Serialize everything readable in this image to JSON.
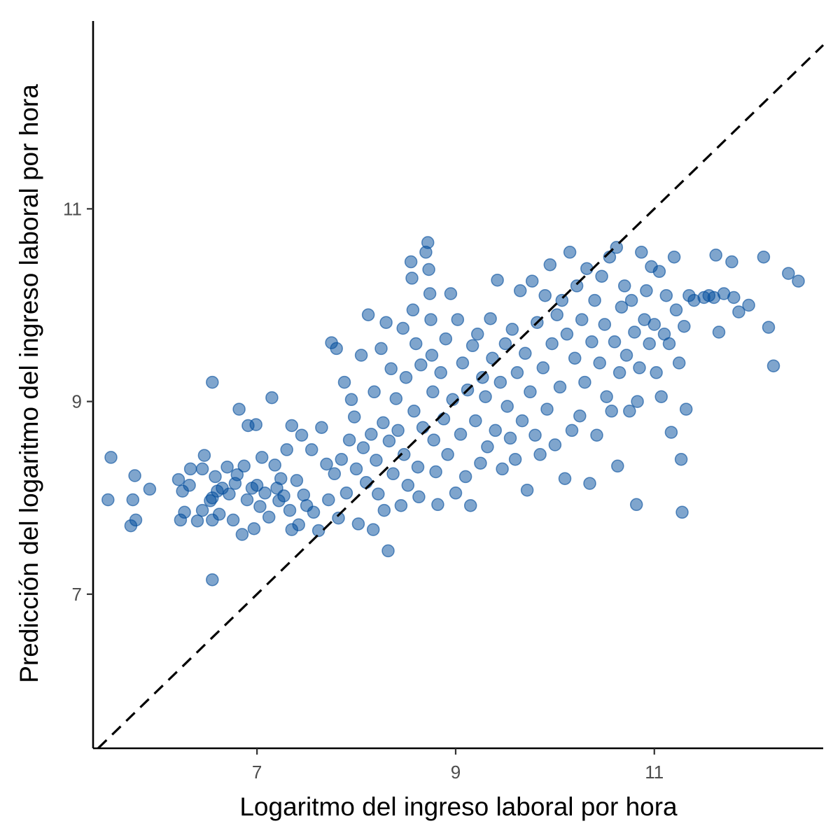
{
  "chart_data": {
    "type": "scatter",
    "title": "",
    "xlabel": "Logaritmo del ingreso laboral por hora",
    "ylabel": "Predicción del logaritmo del ingreso laboral por hora",
    "xlim": [
      5.35,
      12.7
    ],
    "ylim": [
      5.4,
      12.95
    ],
    "x_ticks": [
      7,
      9,
      11
    ],
    "x_tick_labels": [
      "7",
      "9",
      "11"
    ],
    "y_ticks": [
      7,
      9,
      11
    ],
    "y_tick_labels": [
      "7",
      "9",
      "11"
    ],
    "grid": false,
    "legend": "none",
    "reference_line": {
      "type": "identity",
      "slope": 1,
      "intercept": 0,
      "style": "dashed",
      "color": "#000000"
    },
    "point_color": "#004b9b",
    "point_opacity": 0.5,
    "series": [
      {
        "points": [
          [
            5.53,
            8.42
          ],
          [
            5.5,
            7.98
          ],
          [
            5.75,
            7.98
          ],
          [
            5.73,
            7.71
          ],
          [
            5.78,
            7.77
          ],
          [
            5.77,
            8.23
          ],
          [
            5.92,
            8.09
          ],
          [
            6.21,
            8.19
          ],
          [
            6.25,
            8.07
          ],
          [
            6.23,
            7.77
          ],
          [
            6.27,
            7.85
          ],
          [
            6.33,
            8.3
          ],
          [
            6.32,
            8.13
          ],
          [
            6.4,
            7.76
          ],
          [
            6.45,
            7.87
          ],
          [
            6.45,
            8.3
          ],
          [
            6.47,
            8.44
          ],
          [
            6.53,
            7.97
          ],
          [
            6.55,
            8.0
          ],
          [
            6.55,
            7.77
          ],
          [
            6.58,
            8.22
          ],
          [
            6.6,
            8.07
          ],
          [
            6.62,
            7.83
          ],
          [
            6.65,
            8.1
          ],
          [
            6.7,
            8.32
          ],
          [
            6.72,
            8.04
          ],
          [
            6.76,
            7.77
          ],
          [
            6.78,
            8.15
          ],
          [
            6.8,
            8.24
          ],
          [
            6.82,
            8.92
          ],
          [
            6.85,
            7.62
          ],
          [
            6.87,
            8.33
          ],
          [
            6.9,
            7.98
          ],
          [
            6.91,
            8.75
          ],
          [
            6.95,
            8.1
          ],
          [
            6.97,
            7.68
          ],
          [
            6.99,
            8.76
          ],
          [
            7.0,
            8.13
          ],
          [
            7.03,
            7.91
          ],
          [
            7.05,
            8.42
          ],
          [
            7.08,
            8.05
          ],
          [
            7.12,
            7.8
          ],
          [
            7.15,
            9.04
          ],
          [
            7.18,
            8.34
          ],
          [
            7.2,
            8.1
          ],
          [
            7.22,
            7.97
          ],
          [
            7.24,
            8.2
          ],
          [
            7.27,
            8.02
          ],
          [
            7.3,
            8.5
          ],
          [
            7.33,
            7.87
          ],
          [
            7.35,
            8.75
          ],
          [
            7.4,
            8.18
          ],
          [
            7.42,
            7.72
          ],
          [
            7.45,
            8.65
          ],
          [
            7.47,
            8.03
          ],
          [
            7.5,
            7.92
          ],
          [
            6.55,
            7.15
          ],
          [
            6.55,
            9.2
          ],
          [
            7.35,
            7.67
          ],
          [
            7.55,
            8.5
          ],
          [
            7.57,
            7.85
          ],
          [
            7.62,
            7.66
          ],
          [
            7.65,
            8.73
          ],
          [
            7.7,
            8.35
          ],
          [
            7.72,
            7.98
          ],
          [
            7.75,
            9.61
          ],
          [
            7.78,
            8.25
          ],
          [
            7.8,
            9.55
          ],
          [
            7.82,
            7.79
          ],
          [
            7.85,
            8.4
          ],
          [
            7.88,
            9.2
          ],
          [
            7.9,
            8.05
          ],
          [
            7.93,
            8.6
          ],
          [
            7.95,
            9.02
          ],
          [
            7.98,
            8.84
          ],
          [
            8.0,
            8.3
          ],
          [
            8.02,
            7.73
          ],
          [
            8.05,
            9.48
          ],
          [
            8.07,
            8.52
          ],
          [
            8.1,
            8.16
          ],
          [
            8.12,
            9.9
          ],
          [
            8.15,
            8.66
          ],
          [
            8.17,
            7.67
          ],
          [
            8.18,
            9.1
          ],
          [
            8.2,
            8.39
          ],
          [
            8.22,
            8.04
          ],
          [
            8.25,
            9.55
          ],
          [
            8.27,
            8.78
          ],
          [
            8.28,
            7.87
          ],
          [
            8.3,
            9.82
          ],
          [
            8.32,
            7.45
          ],
          [
            8.33,
            8.59
          ],
          [
            8.35,
            9.34
          ],
          [
            8.37,
            8.25
          ],
          [
            8.4,
            9.03
          ],
          [
            8.42,
            8.7
          ],
          [
            8.45,
            7.92
          ],
          [
            8.47,
            9.76
          ],
          [
            8.48,
            8.45
          ],
          [
            8.5,
            9.25
          ],
          [
            8.52,
            8.13
          ],
          [
            8.55,
            10.45
          ],
          [
            8.56,
            10.28
          ],
          [
            8.57,
            9.95
          ],
          [
            8.58,
            8.9
          ],
          [
            8.6,
            9.6
          ],
          [
            8.62,
            8.32
          ],
          [
            8.63,
            8.01
          ],
          [
            8.65,
            9.38
          ],
          [
            8.67,
            8.73
          ],
          [
            8.7,
            10.55
          ],
          [
            8.72,
            10.65
          ],
          [
            8.73,
            10.37
          ],
          [
            8.74,
            10.12
          ],
          [
            8.75,
            9.85
          ],
          [
            8.76,
            9.48
          ],
          [
            8.77,
            9.1
          ],
          [
            8.78,
            8.6
          ],
          [
            8.8,
            8.27
          ],
          [
            8.82,
            7.93
          ],
          [
            8.85,
            9.3
          ],
          [
            8.88,
            8.82
          ],
          [
            8.9,
            9.65
          ],
          [
            8.92,
            8.45
          ],
          [
            8.95,
            10.12
          ],
          [
            8.97,
            9.02
          ],
          [
            9.0,
            8.05
          ],
          [
            9.02,
            9.85
          ],
          [
            9.05,
            8.66
          ],
          [
            9.07,
            9.4
          ],
          [
            9.1,
            8.22
          ],
          [
            9.12,
            9.12
          ],
          [
            9.15,
            7.92
          ],
          [
            9.17,
            9.58
          ],
          [
            9.2,
            8.8
          ],
          [
            9.22,
            9.7
          ],
          [
            9.25,
            8.36
          ],
          [
            9.27,
            9.25
          ],
          [
            9.3,
            9.05
          ],
          [
            9.32,
            8.53
          ],
          [
            9.35,
            9.86
          ],
          [
            9.37,
            9.45
          ],
          [
            9.4,
            8.7
          ],
          [
            9.42,
            10.26
          ],
          [
            9.45,
            9.2
          ],
          [
            9.47,
            8.3
          ],
          [
            9.5,
            9.6
          ],
          [
            9.52,
            8.95
          ],
          [
            9.55,
            8.62
          ],
          [
            9.57,
            9.75
          ],
          [
            9.6,
            8.4
          ],
          [
            9.62,
            9.3
          ],
          [
            9.65,
            10.15
          ],
          [
            9.67,
            8.8
          ],
          [
            9.7,
            9.5
          ],
          [
            9.72,
            8.08
          ],
          [
            9.75,
            9.1
          ],
          [
            9.77,
            10.25
          ],
          [
            9.8,
            8.65
          ],
          [
            9.82,
            9.82
          ],
          [
            9.85,
            8.45
          ],
          [
            9.88,
            9.35
          ],
          [
            9.9,
            10.1
          ],
          [
            9.92,
            8.92
          ],
          [
            9.95,
            10.42
          ],
          [
            9.97,
            9.6
          ],
          [
            10.0,
            8.55
          ],
          [
            10.02,
            9.9
          ],
          [
            10.05,
            9.15
          ],
          [
            10.07,
            10.05
          ],
          [
            10.1,
            8.2
          ],
          [
            10.12,
            9.7
          ],
          [
            10.15,
            10.55
          ],
          [
            10.17,
            8.7
          ],
          [
            10.2,
            9.45
          ],
          [
            10.22,
            10.2
          ],
          [
            10.25,
            8.85
          ],
          [
            10.27,
            9.85
          ],
          [
            10.3,
            9.2
          ],
          [
            10.32,
            10.38
          ],
          [
            10.35,
            8.15
          ],
          [
            10.37,
            9.62
          ],
          [
            10.4,
            10.05
          ],
          [
            10.42,
            8.65
          ],
          [
            10.45,
            9.4
          ],
          [
            10.47,
            10.3
          ],
          [
            10.5,
            9.8
          ],
          [
            10.52,
            9.05
          ],
          [
            10.55,
            10.5
          ],
          [
            10.57,
            8.9
          ],
          [
            10.6,
            9.62
          ],
          [
            10.62,
            10.6
          ],
          [
            10.63,
            8.33
          ],
          [
            10.65,
            9.3
          ],
          [
            10.67,
            9.98
          ],
          [
            10.7,
            10.2
          ],
          [
            10.72,
            9.48
          ],
          [
            10.75,
            8.9
          ],
          [
            10.77,
            10.05
          ],
          [
            10.8,
            9.72
          ],
          [
            10.82,
            7.93
          ],
          [
            10.83,
            9.0
          ],
          [
            10.85,
            9.35
          ],
          [
            10.87,
            10.55
          ],
          [
            10.9,
            9.85
          ],
          [
            10.92,
            10.15
          ],
          [
            10.95,
            9.6
          ],
          [
            10.97,
            10.4
          ],
          [
            11.0,
            9.8
          ],
          [
            11.02,
            9.3
          ],
          [
            11.05,
            10.35
          ],
          [
            11.07,
            9.05
          ],
          [
            11.1,
            9.7
          ],
          [
            11.12,
            10.1
          ],
          [
            11.15,
            9.6
          ],
          [
            11.17,
            8.68
          ],
          [
            11.2,
            10.5
          ],
          [
            11.22,
            9.95
          ],
          [
            11.25,
            9.4
          ],
          [
            11.27,
            8.4
          ],
          [
            11.28,
            7.85
          ],
          [
            11.3,
            9.78
          ],
          [
            11.32,
            8.92
          ],
          [
            11.35,
            10.1
          ],
          [
            11.4,
            10.05
          ],
          [
            11.5,
            10.08
          ],
          [
            11.55,
            10.1
          ],
          [
            11.6,
            10.08
          ],
          [
            11.62,
            10.52
          ],
          [
            11.65,
            9.72
          ],
          [
            11.7,
            10.12
          ],
          [
            11.78,
            10.45
          ],
          [
            11.8,
            10.08
          ],
          [
            11.85,
            9.93
          ],
          [
            11.95,
            10.0
          ],
          [
            12.1,
            10.5
          ],
          [
            12.15,
            9.77
          ],
          [
            12.2,
            9.37
          ],
          [
            12.35,
            10.33
          ],
          [
            12.45,
            10.25
          ]
        ]
      }
    ]
  }
}
